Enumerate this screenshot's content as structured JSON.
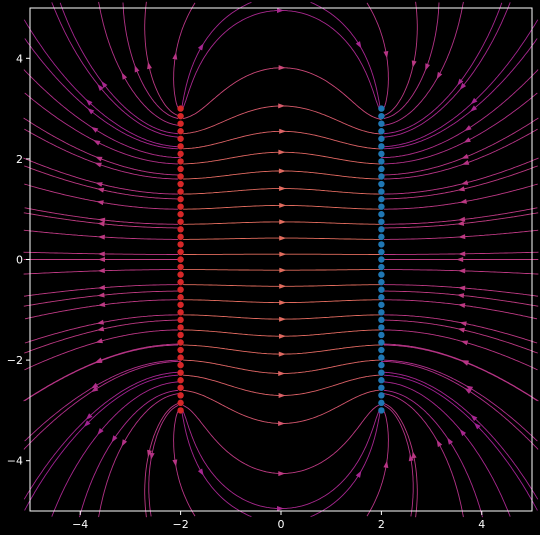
{
  "chart_data": {
    "type": "streamplot",
    "title": "",
    "xlabel": "",
    "ylabel": "",
    "xlim": [
      -5,
      5
    ],
    "ylim": [
      -5,
      5
    ],
    "xticks": [
      -4,
      -2,
      0,
      2,
      4
    ],
    "yticks": [
      -4,
      -2,
      0,
      2,
      4
    ],
    "xtick_labels": [
      "−4",
      "−2",
      "0",
      "2",
      "4"
    ],
    "ytick_labels": [
      "−4",
      "−2",
      "0",
      "2",
      "4"
    ],
    "grid": false,
    "background": "#000000",
    "colormap": "plasma",
    "plates": [
      {
        "name": "",
        "x": -2,
        "y_range": [
          -3,
          3
        ],
        "color": "#d62728",
        "point_count": 41
      },
      {
        "name": "",
        "x": 2,
        "y_range": [
          -3,
          3
        ],
        "color": "#1f77b4",
        "point_count": 41
      }
    ],
    "seeding": {
      "left_outer_y": [
        -2.9,
        -2.6,
        -2.3,
        -2.0,
        -1.7,
        -1.4,
        -1.1,
        -0.8,
        -0.5,
        -0.2,
        0.1,
        0.4,
        0.7,
        1.0,
        1.3,
        1.6,
        1.9,
        2.2,
        2.5,
        2.8
      ],
      "between_y": [
        -2.9,
        -2.6,
        -2.3,
        -2.0,
        -1.7,
        -1.4,
        -1.1,
        -0.8,
        -0.5,
        -0.2,
        0.1,
        0.4,
        0.7,
        1.0,
        1.3,
        1.6,
        1.9,
        2.2,
        2.5,
        2.8
      ],
      "right_outer_y": [
        -2.9,
        -2.6,
        -2.3,
        -2.0,
        -1.7,
        -1.4,
        -1.1,
        -0.8,
        -0.5,
        -0.2,
        0.1,
        0.4,
        0.7,
        1.0,
        1.3,
        1.6,
        1.9,
        2.2,
        2.5,
        2.8
      ]
    }
  }
}
